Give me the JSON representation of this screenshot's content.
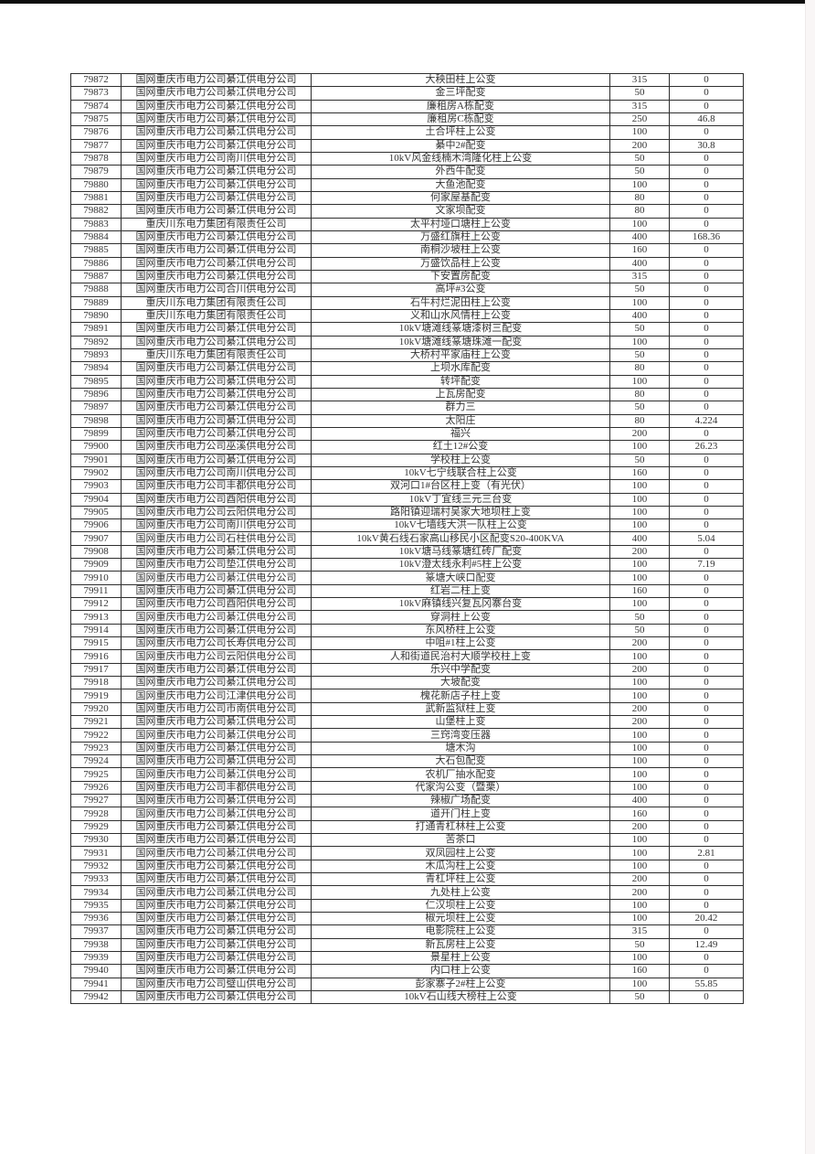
{
  "page": {
    "background_color": "#ffffff",
    "top_edge_color": "#0d0d0d",
    "right_edge_color": "#f9f6f6",
    "border_color": "#2f2f2f",
    "text_color": "#343434"
  },
  "table": {
    "column_keys": [
      "row_id",
      "company",
      "station_name",
      "capacity",
      "value"
    ],
    "rows": [
      [
        "79872",
        "国网重庆市电力公司綦江供电分公司",
        "大秧田柱上公变",
        "315",
        "0"
      ],
      [
        "79873",
        "国网重庆市电力公司綦江供电分公司",
        "金三坪配变",
        "50",
        "0"
      ],
      [
        "79874",
        "国网重庆市电力公司綦江供电分公司",
        "廉租房A栋配变",
        "315",
        "0"
      ],
      [
        "79875",
        "国网重庆市电力公司綦江供电分公司",
        "廉租房C栋配变",
        "250",
        "46.8"
      ],
      [
        "79876",
        "国网重庆市电力公司綦江供电分公司",
        "土合坪柱上公变",
        "100",
        "0"
      ],
      [
        "79877",
        "国网重庆市电力公司綦江供电分公司",
        "綦中2#配变",
        "200",
        "30.8"
      ],
      [
        "79878",
        "国网重庆市电力公司南川供电分公司",
        "10kV风金线楠木湾隆化柱上公变",
        "50",
        "0"
      ],
      [
        "79879",
        "国网重庆市电力公司綦江供电分公司",
        "外西牛配变",
        "50",
        "0"
      ],
      [
        "79880",
        "国网重庆市电力公司綦江供电分公司",
        "大鱼池配变",
        "100",
        "0"
      ],
      [
        "79881",
        "国网重庆市电力公司綦江供电分公司",
        "何家屋基配变",
        "80",
        "0"
      ],
      [
        "79882",
        "国网重庆市电力公司綦江供电分公司",
        "文家坝配变",
        "80",
        "0"
      ],
      [
        "79883",
        "重庆川东电力集团有限责任公司",
        "太平村垭口塘柱上公变",
        "100",
        "0"
      ],
      [
        "79884",
        "国网重庆市电力公司綦江供电分公司",
        "万盛红旗柱上公变",
        "400",
        "168.36"
      ],
      [
        "79885",
        "国网重庆市电力公司綦江供电分公司",
        "南桐沙坡柱上公变",
        "160",
        "0"
      ],
      [
        "79886",
        "国网重庆市电力公司綦江供电分公司",
        "万盛饮品柱上公变",
        "400",
        "0"
      ],
      [
        "79887",
        "国网重庆市电力公司綦江供电分公司",
        "下安置房配变",
        "315",
        "0"
      ],
      [
        "79888",
        "国网重庆市电力公司合川供电分公司",
        "高坪#3公变",
        "50",
        "0"
      ],
      [
        "79889",
        "重庆川东电力集团有限责任公司",
        "石牛村烂泥田柱上公变",
        "100",
        "0"
      ],
      [
        "79890",
        "重庆川东电力集团有限责任公司",
        "义和山水风情柱上公变",
        "400",
        "0"
      ],
      [
        "79891",
        "国网重庆市电力公司綦江供电分公司",
        "10kV塘滩线篆塘漆树三配变",
        "50",
        "0"
      ],
      [
        "79892",
        "国网重庆市电力公司綦江供电分公司",
        "10kV塘滩线篆塘珠滩一配变",
        "100",
        "0"
      ],
      [
        "79893",
        "重庆川东电力集团有限责任公司",
        "大桥村平家庙柱上公变",
        "50",
        "0"
      ],
      [
        "79894",
        "国网重庆市电力公司綦江供电分公司",
        "上坝水库配变",
        "80",
        "0"
      ],
      [
        "79895",
        "国网重庆市电力公司綦江供电分公司",
        "转坪配变",
        "100",
        "0"
      ],
      [
        "79896",
        "国网重庆市电力公司綦江供电分公司",
        "上瓦房配变",
        "80",
        "0"
      ],
      [
        "79897",
        "国网重庆市电力公司綦江供电分公司",
        "群力三",
        "50",
        "0"
      ],
      [
        "79898",
        "国网重庆市电力公司綦江供电分公司",
        "太阳庄",
        "80",
        "4.224"
      ],
      [
        "79899",
        "国网重庆市电力公司綦江供电分公司",
        "福兴",
        "200",
        "0"
      ],
      [
        "79900",
        "国网重庆市电力公司巫溪供电分公司",
        "红土12#公变",
        "100",
        "26.23"
      ],
      [
        "79901",
        "国网重庆市电力公司綦江供电分公司",
        "学校柱上公变",
        "50",
        "0"
      ],
      [
        "79902",
        "国网重庆市电力公司南川供电分公司",
        "10kV七宁线联合柱上公变",
        "160",
        "0"
      ],
      [
        "79903",
        "国网重庆市电力公司丰都供电分公司",
        "双河口1#台区柱上变（有光伏）",
        "100",
        "0"
      ],
      [
        "79904",
        "国网重庆市电力公司酉阳供电分公司",
        "10kV丁宜线三元三台变",
        "100",
        "0"
      ],
      [
        "79905",
        "国网重庆市电力公司云阳供电分公司",
        "路阳镇迎瑞村吴家大地坝柱上变",
        "100",
        "0"
      ],
      [
        "79906",
        "国网重庆市电力公司南川供电分公司",
        "10kV七墙线大洪一队柱上公变",
        "100",
        "0"
      ],
      [
        "79907",
        "国网重庆市电力公司石柱供电分公司",
        "10kV黄石线石家高山移民小区配变S20-400KVA",
        "400",
        "5.04"
      ],
      [
        "79908",
        "国网重庆市电力公司綦江供电分公司",
        "10kV塘马线篆塘红砖厂配变",
        "200",
        "0"
      ],
      [
        "79909",
        "国网重庆市电力公司垫江供电分公司",
        "10kV澄太线永利#5柱上公变",
        "100",
        "7.19"
      ],
      [
        "79910",
        "国网重庆市电力公司綦江供电分公司",
        "篆塘大峡口配变",
        "100",
        "0"
      ],
      [
        "79911",
        "国网重庆市电力公司綦江供电分公司",
        "红岩二柱上变",
        "160",
        "0"
      ],
      [
        "79912",
        "国网重庆市电力公司酉阳供电分公司",
        "10kV麻镇线兴复瓦冈寨台变",
        "100",
        "0"
      ],
      [
        "79913",
        "国网重庆市电力公司綦江供电分公司",
        "穿洞柱上公变",
        "50",
        "0"
      ],
      [
        "79914",
        "国网重庆市电力公司綦江供电分公司",
        "东风桥柱上公变",
        "50",
        "0"
      ],
      [
        "79915",
        "国网重庆市电力公司长寿供电分公司",
        "中咀#1柱上公变",
        "200",
        "0"
      ],
      [
        "79916",
        "国网重庆市电力公司云阳供电分公司",
        "人和街道民治村大顺学校柱上变",
        "100",
        "0"
      ],
      [
        "79917",
        "国网重庆市电力公司綦江供电分公司",
        "乐兴中学配变",
        "200",
        "0"
      ],
      [
        "79918",
        "国网重庆市电力公司綦江供电分公司",
        "大坡配变",
        "100",
        "0"
      ],
      [
        "79919",
        "国网重庆市电力公司江津供电分公司",
        "槐花新店子柱上变",
        "100",
        "0"
      ],
      [
        "79920",
        "国网重庆市电力公司市南供电分公司",
        "武新监狱柱上变",
        "200",
        "0"
      ],
      [
        "79921",
        "国网重庆市电力公司綦江供电分公司",
        "山堡柱上变",
        "200",
        "0"
      ],
      [
        "79922",
        "国网重庆市电力公司綦江供电分公司",
        "三窍湾变压器",
        "100",
        "0"
      ],
      [
        "79923",
        "国网重庆市电力公司綦江供电分公司",
        "塘木沟",
        "100",
        "0"
      ],
      [
        "79924",
        "国网重庆市电力公司綦江供电分公司",
        "大石包配变",
        "100",
        "0"
      ],
      [
        "79925",
        "国网重庆市电力公司綦江供电分公司",
        "农机厂抽水配变",
        "100",
        "0"
      ],
      [
        "79926",
        "国网重庆市电力公司丰都供电分公司",
        "代家沟公变（暨栗）",
        "100",
        "0"
      ],
      [
        "79927",
        "国网重庆市电力公司綦江供电分公司",
        "辣椒广场配变",
        "400",
        "0"
      ],
      [
        "79928",
        "国网重庆市电力公司綦江供电分公司",
        "道开门柱上变",
        "160",
        "0"
      ],
      [
        "79929",
        "国网重庆市电力公司綦江供电分公司",
        "打通青杠林柱上公变",
        "200",
        "0"
      ],
      [
        "79930",
        "国网重庆市电力公司綦江供电分公司",
        "苦茶口",
        "100",
        "0"
      ],
      [
        "79931",
        "国网重庆市电力公司綦江供电分公司",
        "双凤园柱上公变",
        "100",
        "2.81"
      ],
      [
        "79932",
        "国网重庆市电力公司綦江供电分公司",
        "木瓜沟柱上公变",
        "100",
        "0"
      ],
      [
        "79933",
        "国网重庆市电力公司綦江供电分公司",
        "青杠坪柱上公变",
        "200",
        "0"
      ],
      [
        "79934",
        "国网重庆市电力公司綦江供电分公司",
        "九处柱上公变",
        "200",
        "0"
      ],
      [
        "79935",
        "国网重庆市电力公司綦江供电分公司",
        "仁汉坝柱上公变",
        "100",
        "0"
      ],
      [
        "79936",
        "国网重庆市电力公司綦江供电分公司",
        "椒元坝柱上公变",
        "100",
        "20.42"
      ],
      [
        "79937",
        "国网重庆市电力公司綦江供电分公司",
        "电影院柱上公变",
        "315",
        "0"
      ],
      [
        "79938",
        "国网重庆市电力公司綦江供电分公司",
        "新瓦房柱上公变",
        "50",
        "12.49"
      ],
      [
        "79939",
        "国网重庆市电力公司綦江供电分公司",
        "景星柱上公变",
        "100",
        "0"
      ],
      [
        "79940",
        "国网重庆市电力公司綦江供电分公司",
        "内口柱上公变",
        "160",
        "0"
      ],
      [
        "79941",
        "国网重庆市电力公司璧山供电分公司",
        "彭家寨子2#柱上公变",
        "100",
        "55.85"
      ],
      [
        "79942",
        "国网重庆市电力公司綦江供电分公司",
        "10kV石山线大榜柱上公变",
        "50",
        "0"
      ]
    ]
  }
}
